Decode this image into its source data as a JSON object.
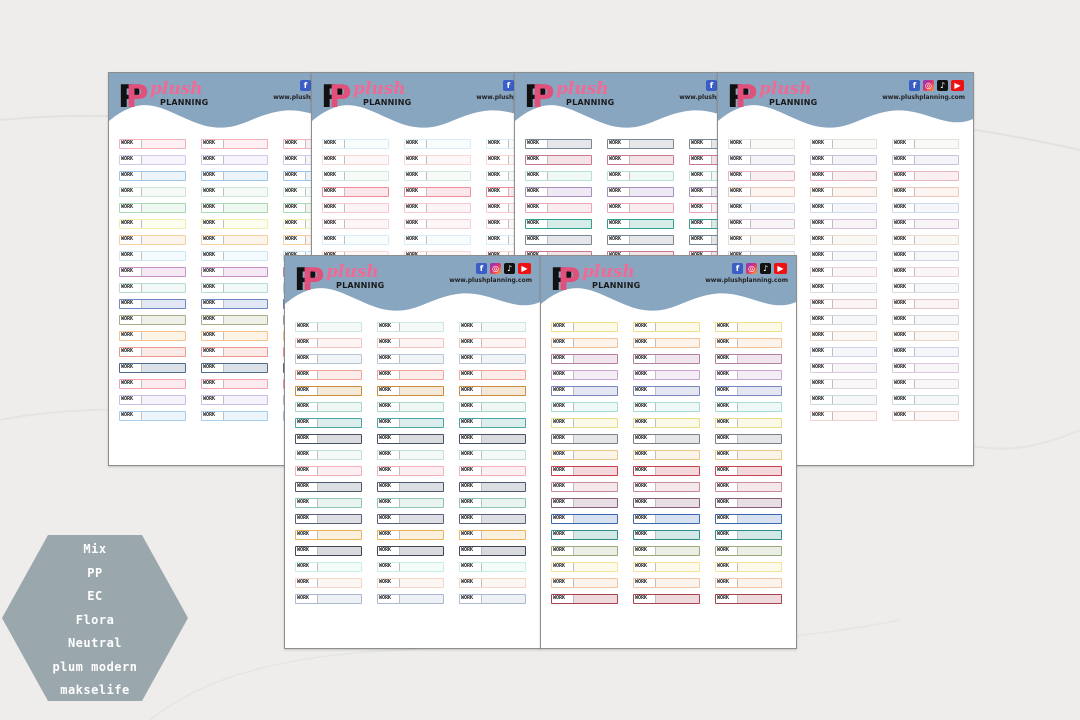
{
  "brand": {
    "mark": "PP",
    "plush": "plush",
    "planning": "PLANNING",
    "website": "www.plushplanning.com",
    "socials": [
      "facebook-icon",
      "instagram-icon",
      "tiktok-icon",
      "youtube-icon"
    ]
  },
  "label_text": "WORK",
  "colors": {
    "header": "#89a6c1",
    "hexagon": "#9aa7ad",
    "background": "#eeedeb"
  },
  "sheets": [
    {
      "name": "Mix",
      "rows": 18,
      "palette": [
        "#f3b1bc",
        "#d6c9ea",
        "#9dc7ea",
        "#cfe6d4",
        "#a9d8b5",
        "#f1efb0",
        "#f5cfa0",
        "#c9e6f4",
        "#c98dc3",
        "#b9dcd7",
        "#6e88c7",
        "#a9ad87",
        "#f6c38b",
        "#f0968c",
        "#4e6a8a",
        "#f3a0b0",
        "#cdbde7",
        "#a7cdef"
      ]
    },
    {
      "name": "PP",
      "rows": 18,
      "palette": [
        "#d7eef5",
        "#fbd7d7",
        "#d0e9dd",
        "#f08d99",
        "#f7c9cf",
        "#f3d2d8"
      ]
    },
    {
      "name": "EC",
      "rows": 18,
      "palette": [
        "#7b8694",
        "#c77a8c",
        "#b6e0d4",
        "#a98fbe",
        "#e6a7b4",
        "#2f9e93"
      ]
    },
    {
      "name": "Flora",
      "rows": 18,
      "palette": [
        "#dfe3dc",
        "#c9c3d9",
        "#e8b4bf",
        "#ecc8b9",
        "#d0d9e8",
        "#d6c2d6",
        "#e7dccf",
        "#cfd5e3",
        "#e8d3d7",
        "#d8dee0",
        "#e6c7c8",
        "#d3d6da",
        "#e9d9c6",
        "#ccd3e6",
        "#d9cbdd",
        "#e3d8d8",
        "#cfd9e0",
        "#f0d1cf"
      ]
    },
    {
      "name": "Neutral",
      "rows": 18,
      "palette": [
        "#cce8dc",
        "#f3c7c1",
        "#b8c7d8",
        "#f2a39a",
        "#c98d3b",
        "#a8d8c4",
        "#4aa6a4",
        "#465264",
        "#c3dfd7",
        "#f3b0b8",
        "#4d5a6c",
        "#8fc3b5",
        "#59607a",
        "#e9b55a",
        "#3f4656",
        "#c7f0e4",
        "#f7d6c8",
        "#aab8d1"
      ]
    },
    {
      "name": "plum modern",
      "rows": 18,
      "palette": [
        "#f1e08a",
        "#f3c29a",
        "#b57fa1",
        "#c9a4d0",
        "#7a86c0",
        "#a6dcd5",
        "#e7dd86",
        "#7a8088",
        "#e8c78a",
        "#c9404f",
        "#c98a9a",
        "#8a5d7f",
        "#3a67b0",
        "#2e8d8a",
        "#98a97a",
        "#f6e39a",
        "#f3c5a5",
        "#a8424e"
      ]
    }
  ],
  "hexagon_list": [
    "Mix",
    "PP",
    "EC",
    "Flora",
    "Neutral",
    "plum modern",
    "makselife"
  ]
}
